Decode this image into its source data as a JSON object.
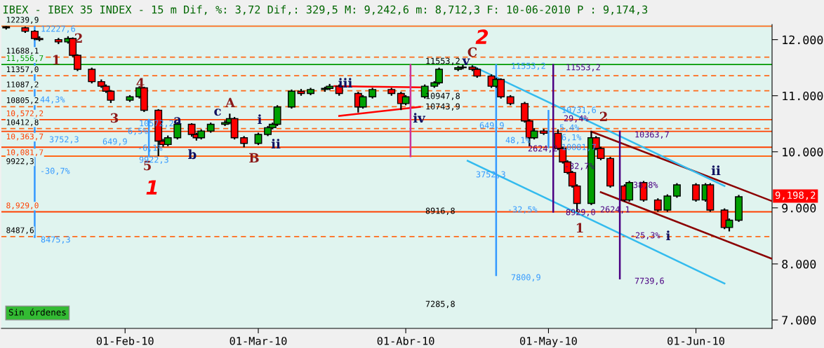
{
  "chart_data": {
    "type": "candlestick",
    "title": "IBEX - IBEX 35 INDEX - 15 m Dif, %: 3,72 Dif,: 329,5 M: 9,242,6 m: 8,712,3 F: 10-06-2010 P : 9,174,3",
    "x": [
      "2010-01-07",
      "2010-01-11",
      "2010-01-13",
      "2010-01-14",
      "2010-01-18",
      "2010-01-20",
      "2010-01-21",
      "2010-01-22",
      "2010-01-25",
      "2010-01-27",
      "2010-01-28",
      "2010-01-29",
      "2010-02-02",
      "2010-02-04",
      "2010-02-05",
      "2010-02-08",
      "2010-02-09",
      "2010-02-10",
      "2010-02-12",
      "2010-02-15",
      "2010-02-16",
      "2010-02-17",
      "2010-02-19",
      "2010-02-22",
      "2010-02-23",
      "2010-02-24",
      "2010-02-26",
      "2010-03-01",
      "2010-03-03",
      "2010-03-04",
      "2010-03-05",
      "2010-03-08",
      "2010-03-10",
      "2010-03-12",
      "2010-03-15",
      "2010-03-16",
      "2010-03-18",
      "2010-03-22",
      "2010-03-23",
      "2010-03-25",
      "2010-03-29",
      "2010-03-31",
      "2010-04-01",
      "2010-04-05",
      "2010-04-07",
      "2010-04-08",
      "2010-04-12",
      "2010-04-13",
      "2010-04-15",
      "2010-04-16",
      "2010-04-19",
      "2010-04-20",
      "2010-04-21",
      "2010-04-23",
      "2010-04-26",
      "2010-04-27",
      "2010-04-28",
      "2010-04-30",
      "2010-05-03",
      "2010-05-04",
      "2010-05-05",
      "2010-05-06",
      "2010-05-07",
      "2010-05-10",
      "2010-05-11",
      "2010-05-12",
      "2010-05-14",
      "2010-05-17",
      "2010-05-18",
      "2010-05-21",
      "2010-05-24",
      "2010-05-26",
      "2010-05-28",
      "2010-06-01",
      "2010-06-03",
      "2010-06-04",
      "2010-06-07",
      "2010-06-08",
      "2010-06-10"
    ],
    "ohlc": [
      [
        12230,
        12240,
        12180,
        12210
      ],
      [
        12210,
        12230,
        12120,
        12150
      ],
      [
        12150,
        12170,
        11990,
        12020
      ],
      [
        12020,
        12060,
        11970,
        12000
      ],
      [
        12000,
        12030,
        11920,
        11960
      ],
      [
        11960,
        12060,
        11930,
        12020
      ],
      [
        12020,
        12040,
        11690,
        11720
      ],
      [
        11720,
        11740,
        11440,
        11470
      ],
      [
        11470,
        11500,
        11220,
        11250
      ],
      [
        11250,
        11290,
        11140,
        11170
      ],
      [
        11170,
        11200,
        11050,
        11080
      ],
      [
        11080,
        11100,
        10870,
        10920
      ],
      [
        10920,
        11010,
        10890,
        10980
      ],
      [
        10980,
        11170,
        10950,
        11140
      ],
      [
        11140,
        11160,
        10710,
        10740
      ],
      [
        10740,
        10760,
        9922.3,
        10190
      ],
      [
        10190,
        10230,
        10090,
        10130
      ],
      [
        10130,
        10290,
        10100,
        10250
      ],
      [
        10250,
        10530,
        10220,
        10490
      ],
      [
        10490,
        10510,
        10270,
        10310
      ],
      [
        10310,
        10340,
        10200,
        10250
      ],
      [
        10250,
        10400,
        10220,
        10370
      ],
      [
        10370,
        10520,
        10340,
        10490
      ],
      [
        10490,
        10560,
        10460,
        10520
      ],
      [
        10520,
        10680,
        10490,
        10590
      ],
      [
        10590,
        10620,
        10220,
        10250
      ],
      [
        10250,
        10280,
        10080,
        10150
      ],
      [
        10150,
        10340,
        10120,
        10310
      ],
      [
        10310,
        10460,
        10280,
        10430
      ],
      [
        10430,
        10520,
        10400,
        10490
      ],
      [
        10490,
        10830,
        10460,
        10800
      ],
      [
        10800,
        11110,
        10770,
        11080
      ],
      [
        11080,
        11120,
        11000,
        11040
      ],
      [
        11040,
        11140,
        11010,
        11110
      ],
      [
        11110,
        11160,
        11070,
        11130
      ],
      [
        11130,
        11210,
        11100,
        11170
      ],
      [
        11170,
        11200,
        11000,
        11040
      ],
      [
        11040,
        11070,
        10700,
        10800
      ],
      [
        10800,
        11010,
        10770,
        10980
      ],
      [
        10980,
        11140,
        10950,
        11110
      ],
      [
        11110,
        11140,
        11000,
        11040
      ],
      [
        11040,
        11070,
        10743.9,
        10860
      ],
      [
        10860,
        11010,
        10830,
        10980
      ],
      [
        10980,
        11200,
        10950,
        11170
      ],
      [
        11170,
        11260,
        11140,
        11230
      ],
      [
        11230,
        11500,
        11200,
        11470
      ],
      [
        11470,
        11530,
        11440,
        11500
      ],
      [
        11500,
        11553.2,
        11470,
        11510
      ],
      [
        11510,
        11540,
        11440,
        11470
      ],
      [
        11470,
        11500,
        11320,
        11350
      ],
      [
        11350,
        11380,
        11140,
        11170
      ],
      [
        11170,
        11320,
        11140,
        11290
      ],
      [
        11290,
        11310,
        10950,
        10980
      ],
      [
        10980,
        11010,
        10830,
        10860
      ],
      [
        10860,
        10890,
        10520,
        10550
      ],
      [
        10550,
        10580,
        10100,
        10250
      ],
      [
        10250,
        10420,
        10220,
        10370
      ],
      [
        10370,
        10410,
        10300,
        10330
      ],
      [
        10330,
        10400,
        10030,
        10060
      ],
      [
        10060,
        10090,
        9790,
        9820
      ],
      [
        9820,
        9850,
        9600,
        9630
      ],
      [
        9630,
        9660,
        9360,
        9390
      ],
      [
        9390,
        9420,
        8929,
        9080
      ],
      [
        9080,
        10363.7,
        9050,
        10250
      ],
      [
        10250,
        10280,
        10030,
        10060
      ],
      [
        10060,
        10090,
        9850,
        9880
      ],
      [
        9880,
        9910,
        9360,
        9390
      ],
      [
        9390,
        9420,
        9110,
        9140
      ],
      [
        9140,
        9480,
        9110,
        9450
      ],
      [
        9450,
        9480,
        9110,
        9140
      ],
      [
        9140,
        9170,
        8930,
        8960
      ],
      [
        8960,
        9240,
        8930,
        9210
      ],
      [
        9210,
        9440,
        9180,
        9410
      ],
      [
        9410,
        9440,
        9110,
        9140
      ],
      [
        9140,
        9440,
        9110,
        9410
      ],
      [
        9410,
        9440,
        8930,
        8960
      ],
      [
        8960,
        8990,
        8620,
        8650
      ],
      [
        8650,
        8810,
        8580,
        8780
      ],
      [
        8780,
        9230,
        8750,
        9198.2
      ]
    ],
    "colors": [
      "#ff0000",
      "#ff0000",
      "#ff0000",
      "#ff0000",
      "#ff0000",
      "#00a000",
      "#ff0000",
      "#ff0000",
      "#ff0000",
      "#ff0000",
      "#ff0000",
      "#ff0000",
      "#00a000",
      "#00a000",
      "#ff0000",
      "#ff0000",
      "#ff0000",
      "#00a000",
      "#00a000",
      "#ff0000",
      "#ff0000",
      "#00a000",
      "#00a000",
      "#00a000",
      "#00a000",
      "#ff0000",
      "#ff0000",
      "#00a000",
      "#00a000",
      "#00a000",
      "#00a000",
      "#00a000",
      "#ff0000",
      "#00a000",
      "#00a000",
      "#00a000",
      "#ff0000",
      "#ff0000",
      "#00a000",
      "#00a000",
      "#ff0000",
      "#ff0000",
      "#00a000",
      "#00a000",
      "#00a000",
      "#00a000",
      "#00a000",
      "#00a000",
      "#ff0000",
      "#ff0000",
      "#ff0000",
      "#00a000",
      "#ff0000",
      "#ff0000",
      "#ff0000",
      "#ff0000",
      "#00a000",
      "#ff0000",
      "#ff0000",
      "#ff0000",
      "#ff0000",
      "#ff0000",
      "#ff0000",
      "#00a000",
      "#ff0000",
      "#ff0000",
      "#ff0000",
      "#ff0000",
      "#00a000",
      "#ff0000",
      "#ff0000",
      "#00a000",
      "#00a000",
      "#ff0000",
      "#00a000",
      "#ff0000",
      "#ff0000",
      "#00a000",
      "#00a000"
    ],
    "series": [
      {
        "type": "line",
        "color": "#ff0000",
        "x": [
          "2010-03-17",
          "2010-04-04"
        ],
        "values": [
          11170,
          11150
        ]
      },
      {
        "type": "line",
        "color": "#ff0000",
        "x": [
          "2010-03-18",
          "2010-04-04"
        ],
        "values": [
          10640,
          10800
        ]
      },
      {
        "type": "line",
        "color": "#8b0000",
        "x": [
          "2010-05-10",
          "2010-06-17"
        ],
        "values": [
          10360,
          9120
        ]
      },
      {
        "type": "line",
        "color": "#8b0000",
        "x": [
          "2010-05-12",
          "2010-06-17"
        ],
        "values": [
          9280,
          8090
        ]
      },
      {
        "type": "line",
        "color": "#33bbee",
        "x": [
          "2010-04-15",
          "2010-06-07"
        ],
        "values": [
          11530,
          9390
        ]
      },
      {
        "type": "line",
        "color": "#33bbee",
        "x": [
          "2010-04-14",
          "2010-06-07"
        ],
        "values": [
          9840,
          7650
        ]
      },
      {
        "type": "line",
        "color": "#3399ff",
        "x": [
          "2010-01-13",
          "2010-01-13"
        ],
        "values": [
          12230,
          8480
        ]
      },
      {
        "type": "line",
        "color": "#3399ff",
        "x": [
          "2010-02-06",
          "2010-02-06"
        ],
        "values": [
          10570,
          9920
        ]
      },
      {
        "type": "line",
        "color": "#3399ff",
        "x": [
          "2010-04-20",
          "2010-04-20"
        ],
        "values": [
          11550,
          7800
        ]
      },
      {
        "type": "line",
        "color": "#3399ff",
        "x": [
          "2010-05-01",
          "2010-05-01"
        ],
        "values": [
          10730,
          10080
        ]
      },
      {
        "type": "line",
        "color": "#4b0082",
        "x": [
          "2010-05-02",
          "2010-05-02"
        ],
        "values": [
          11550,
          8930
        ]
      },
      {
        "type": "line",
        "color": "#4b0082",
        "x": [
          "2010-05-16",
          "2010-05-16"
        ],
        "values": [
          10360,
          7740
        ]
      },
      {
        "type": "line",
        "color": "#cc3399",
        "x": [
          "2010-04-02",
          "2010-04-02"
        ],
        "values": [
          11550,
          9920
        ]
      }
    ],
    "ref_lines": [
      {
        "axis": "y",
        "value": 12239.9,
        "label": "12239,9",
        "color": "#ff6a1a",
        "line_style": "solid"
      },
      {
        "axis": "y",
        "value": 11688.1,
        "label": "11688,1",
        "color": "#ff6a1a",
        "line_style": "dashed"
      },
      {
        "axis": "y",
        "value": 11556.7,
        "label": "11,556,7",
        "color": "#009900",
        "line_style": "solid"
      },
      {
        "axis": "y",
        "value": 11357.0,
        "label": "11357,0",
        "color": "#ff6a1a",
        "line_style": "dashed"
      },
      {
        "axis": "y",
        "value": 11087.2,
        "label": "11087,2",
        "color": "#ff6a1a",
        "line_style": "dashed"
      },
      {
        "axis": "y",
        "value": 10805.2,
        "label": "10805,2",
        "color": "#ff6a1a",
        "line_style": "dashed"
      },
      {
        "axis": "y",
        "value": 10572.2,
        "label": "10,572,2",
        "color": "#ff4000",
        "line_style": "solid"
      },
      {
        "axis": "y",
        "value": 10412.8,
        "label": "10412,8",
        "color": "#ff6a1a",
        "line_style": "dashed"
      },
      {
        "axis": "y",
        "value": 10363.7,
        "label": "10,363,7",
        "color": "#ff4000",
        "line_style": "solid"
      },
      {
        "axis": "y",
        "value": 10081.7,
        "label": "10,081,7",
        "color": "#ff4000",
        "line_style": "solid"
      },
      {
        "axis": "y",
        "value": 9922.3,
        "label": "9922,3",
        "color": "#ff6a1a",
        "line_style": "solid"
      },
      {
        "axis": "y",
        "value": 8929.0,
        "label": "8,929,0",
        "color": "#ff4000",
        "line_style": "solid"
      },
      {
        "axis": "y",
        "value": 8487.6,
        "label": "8487,6",
        "color": "#ff6a1a",
        "line_style": "dashed"
      }
    ],
    "annotations": [
      "Sin órdenes",
      "9,198,2",
      "1",
      "2",
      "3",
      "4",
      "5",
      "A",
      "B",
      "C",
      "2",
      "1",
      "1",
      "2",
      "a",
      "b",
      "c",
      "i",
      "ii",
      "iii",
      "iv",
      "v",
      "ii",
      "i",
      "12227,6",
      "44,3%",
      "-30,7%",
      "8475,3",
      "3752,3",
      "649,9",
      "10572,2",
      "6,5%",
      "-6,1%",
      "9922,3",
      "3752,3",
      "11553,2",
      "-32,5%",
      "7800,9",
      "48,1%",
      "649,9",
      "10731,6",
      "5,4%",
      "6,1%",
      "10081,7",
      "11553,2",
      "29,4%",
      "2624,2",
      "-32,7%",
      "10363,7",
      "38,8%",
      "8929,0",
      "2624,1",
      "-25,3%",
      "7739,6",
      "11553,2",
      "10947,8",
      "10743,9",
      "8916,8",
      "7285,8"
    ],
    "xlim": [
      "2010-01-06",
      "2010-06-17"
    ],
    "xticks": [
      {
        "value": "2010-02-01",
        "label": "01-Feb-10"
      },
      {
        "value": "2010-03-01",
        "label": "01-Mar-10"
      },
      {
        "value": "2010-04-01",
        "label": "01-Abr-10"
      },
      {
        "value": "2010-05-01",
        "label": "01-May-10"
      },
      {
        "value": "2010-06-01",
        "label": "01-Jun-10"
      }
    ],
    "ylim": [
      6850,
      12270
    ],
    "yticks": [
      {
        "value": 7000,
        "label": "7.000"
      },
      {
        "value": 8000,
        "label": "8.000"
      },
      {
        "value": 9000,
        "label": "9.000"
      },
      {
        "value": 10000,
        "label": "10.000"
      },
      {
        "value": 11000,
        "label": "11.000"
      },
      {
        "value": 12000,
        "label": "12.000"
      }
    ],
    "grid": false,
    "legend": false
  }
}
